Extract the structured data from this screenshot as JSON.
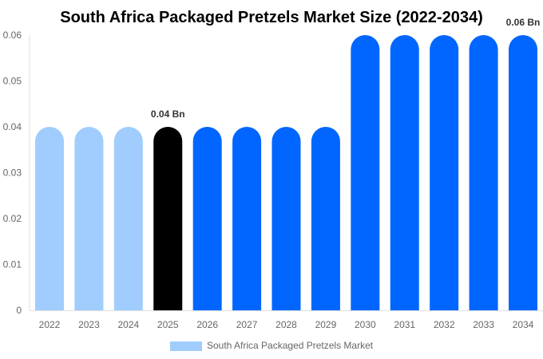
{
  "chart_data": {
    "type": "bar",
    "title": "South Africa Packaged Pretzels Market Size (2022-2034)",
    "categories": [
      "2022",
      "2023",
      "2024",
      "2025",
      "2026",
      "2027",
      "2028",
      "2029",
      "2030",
      "2031",
      "2032",
      "2033",
      "2034"
    ],
    "series": [
      {
        "name": "South Africa Packaged Pretzels Market",
        "values": [
          0.04,
          0.04,
          0.04,
          0.04,
          0.04,
          0.04,
          0.04,
          0.04,
          0.06,
          0.06,
          0.06,
          0.06,
          0.06
        ]
      }
    ],
    "data_labels": [
      {
        "category": "2025",
        "text": "0.04 Bn"
      },
      {
        "category": "2034",
        "text": "0.06 Bn"
      }
    ],
    "ylim": [
      0,
      0.06
    ],
    "yticks": [
      "0",
      "0.01",
      "0.02",
      "0.03",
      "0.04",
      "0.05",
      "0.06"
    ],
    "xlabel": "",
    "ylabel": "",
    "grid": false,
    "legend_placement": "bottom",
    "colors": {
      "historical": "#a0cdfe",
      "current": "#000000",
      "forecast": "#0066ff"
    },
    "color_by_category": [
      "historical",
      "historical",
      "historical",
      "current",
      "forecast",
      "forecast",
      "forecast",
      "forecast",
      "forecast",
      "forecast",
      "forecast",
      "forecast",
      "forecast"
    ]
  }
}
